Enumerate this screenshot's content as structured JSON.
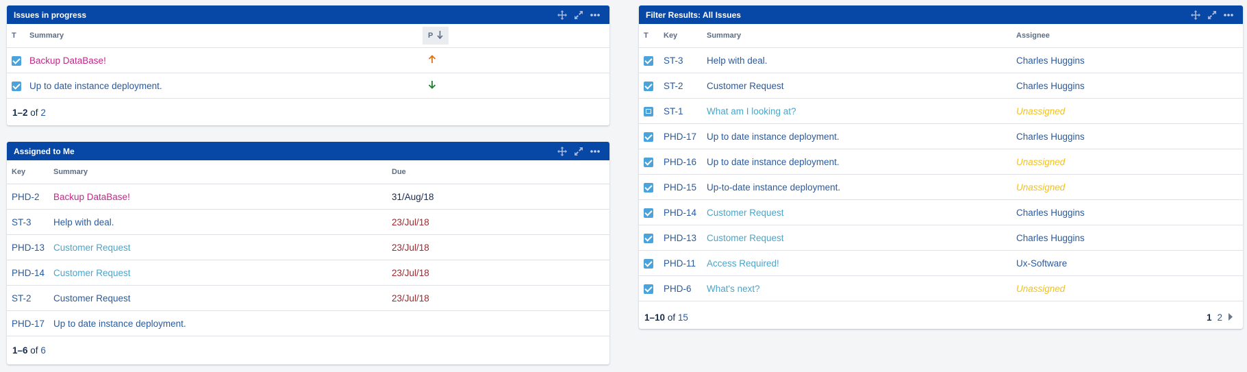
{
  "progress": {
    "title": "Issues in progress",
    "cols": {
      "t": "T",
      "summary": "Summary",
      "p": "P"
    },
    "rows": [
      {
        "summary": "Backup DataBase!",
        "priority": "up"
      },
      {
        "summary": "Up to date instance deployment.",
        "priority": "down"
      }
    ],
    "footer": {
      "range": "1–2",
      "of": "of",
      "total": "2"
    }
  },
  "assigned": {
    "title": "Assigned to Me",
    "cols": {
      "key": "Key",
      "summary": "Summary",
      "due": "Due"
    },
    "rows": [
      {
        "key": "PHD-2",
        "summary": "Backup DataBase!",
        "due": "31/Aug/18"
      },
      {
        "key": "ST-3",
        "summary": "Help with deal.",
        "due": "23/Jul/18"
      },
      {
        "key": "PHD-13",
        "summary": "Customer Request",
        "due": "23/Jul/18"
      },
      {
        "key": "PHD-14",
        "summary": "Customer Request",
        "due": "23/Jul/18"
      },
      {
        "key": "ST-2",
        "summary": "Customer Request",
        "due": "23/Jul/18"
      },
      {
        "key": "PHD-17",
        "summary": "Up to date instance deployment.",
        "due": ""
      }
    ],
    "footer": {
      "range": "1–6",
      "of": "of",
      "total": "6"
    }
  },
  "filter": {
    "title": "Filter Results: All Issues",
    "cols": {
      "t": "T",
      "key": "Key",
      "summary": "Summary",
      "assignee": "Assignee"
    },
    "rows": [
      {
        "key": "ST-3",
        "summary": "Help with deal.",
        "assignee": "Charles Huggins"
      },
      {
        "key": "ST-2",
        "summary": "Customer Request",
        "assignee": "Charles Huggins"
      },
      {
        "key": "ST-1",
        "summary": "What am I looking at?",
        "assignee": "Unassigned"
      },
      {
        "key": "PHD-17",
        "summary": "Up to date instance deployment.",
        "assignee": "Charles Huggins"
      },
      {
        "key": "PHD-16",
        "summary": "Up to date instance deployment.",
        "assignee": "Unassigned"
      },
      {
        "key": "PHD-15",
        "summary": "Up-to-date instance deployment.",
        "assignee": "Unassigned"
      },
      {
        "key": "PHD-14",
        "summary": "Customer Request",
        "assignee": "Charles Huggins"
      },
      {
        "key": "PHD-13",
        "summary": "Customer Request",
        "assignee": "Charles Huggins"
      },
      {
        "key": "PHD-11",
        "summary": "Access Required!",
        "assignee": "Ux-Software"
      },
      {
        "key": "PHD-6",
        "summary": "What's next?",
        "assignee": "Unassigned"
      }
    ],
    "footer": {
      "range": "1–10",
      "of": "of",
      "total": "15"
    },
    "pager": {
      "current": "1",
      "next": "2"
    }
  },
  "icons": [
    "move-icon",
    "expand-icon",
    "more-icon",
    "checkbox-icon",
    "question-issue-icon",
    "arrow-up-icon",
    "arrow-down-icon",
    "sort-down-icon",
    "chevron-right-icon"
  ],
  "colors": {
    "header": "#0747a6",
    "link": "#2a5a9e",
    "highlight": "#c4268a",
    "teal": "#4aa5c9",
    "overdue": "#a1262b",
    "unassigned": "#f1c21b",
    "priority_up": "#e5700f",
    "priority_down": "#1e7d2e"
  }
}
